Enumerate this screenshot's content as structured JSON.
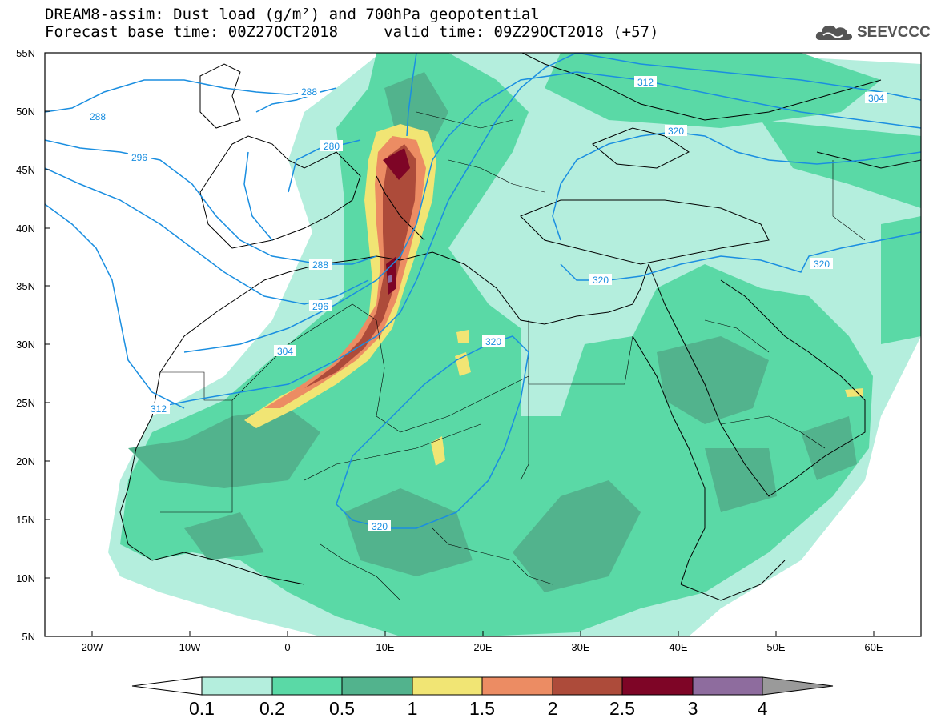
{
  "header": {
    "title_line1": "DREAM8-assim: Dust load (g/m²) and 700hPa geopotential",
    "title_line2": "Forecast base time: 00Z27OCT2018     valid time: 09Z29OCT2018 (+57)"
  },
  "logo": {
    "text": "SEEVCCC",
    "icon": "cloud-icon"
  },
  "map": {
    "lon_labels": [
      "20W",
      "10W",
      "0",
      "10E",
      "20E",
      "30E",
      "40E",
      "50E",
      "60E"
    ],
    "lat_labels": [
      "55N",
      "50N",
      "45N",
      "40N",
      "35N",
      "30N",
      "25N",
      "20N",
      "15N",
      "10N",
      "5N"
    ],
    "contour_labels": [
      "288",
      "288",
      "280",
      "288",
      "296",
      "296",
      "304",
      "304",
      "312",
      "312",
      "320",
      "320",
      "320",
      "320",
      "320"
    ],
    "colors": {
      "contour": "#1a8ee0",
      "bg": "#ffffff",
      "coast": "#000000"
    }
  },
  "colorbar": {
    "labels": [
      "0.1",
      "0.2",
      "0.5",
      "1",
      "1.5",
      "2",
      "2.5",
      "3",
      "4"
    ],
    "colors": [
      "#ffffff",
      "#b4eedd",
      "#5ad9a6",
      "#52b38d",
      "#f1e574",
      "#ec8c63",
      "#ad4b3a",
      "#7e0526",
      "#8e6c9e",
      "#9a9a9a"
    ]
  }
}
